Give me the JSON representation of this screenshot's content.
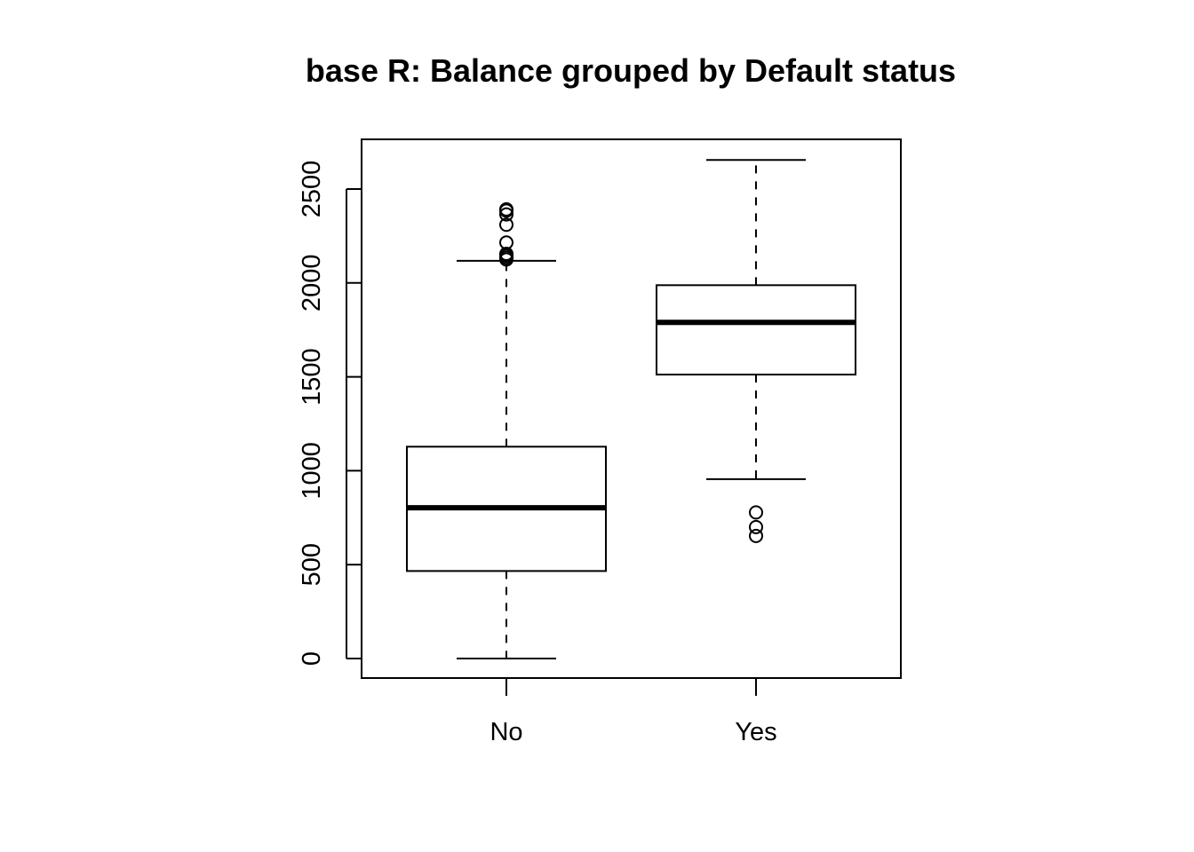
{
  "chart_data": {
    "type": "boxplot",
    "title": "base R: Balance grouped by Default status",
    "xlabel": "",
    "ylabel": "",
    "categories": [
      "No",
      "Yes"
    ],
    "ylim": [
      -100,
      2760
    ],
    "yticks": [
      0,
      500,
      1000,
      1500,
      2000,
      2500
    ],
    "boxes": [
      {
        "category": "No",
        "whisker_low": 0,
        "q1": 466,
        "median": 803,
        "q3": 1128,
        "whisker_high": 2118,
        "outliers": [
          2125,
          2135,
          2145,
          2155,
          2215,
          2310,
          2365,
          2385,
          2392
        ]
      },
      {
        "category": "Yes",
        "whisker_low": 955,
        "q1": 1512,
        "median": 1790,
        "q3": 1988,
        "whisker_high": 2655,
        "outliers": [
          653,
          700,
          778
        ]
      }
    ],
    "grid": false,
    "legend": "none"
  }
}
